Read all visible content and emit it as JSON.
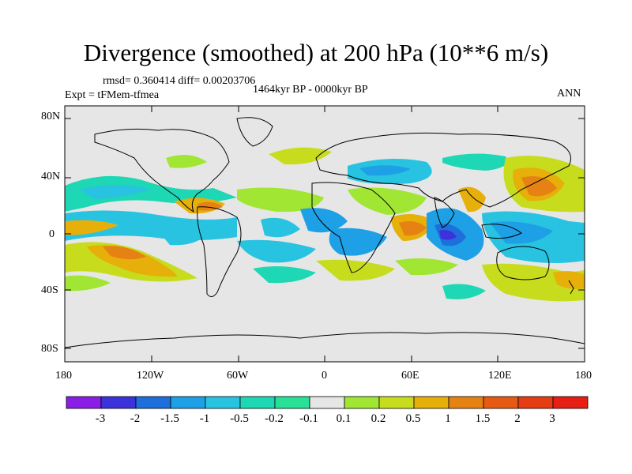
{
  "title": "Divergence (smoothed) at 200 hPa (10**6 m/s)",
  "stats": "rmsd= 0.360414 diff= 0.00203706",
  "period": "1464kyr BP - 0000kyr BP",
  "experiment": "Expt = tFMem-tfmea",
  "season": "ANN",
  "lat_ticks": [
    "80N",
    "40N",
    "0",
    "40S",
    "80S"
  ],
  "lon_ticks": [
    "180",
    "120W",
    "60W",
    "0",
    "60E",
    "120E",
    "180"
  ],
  "colorbar": {
    "labels": [
      "-3",
      "-2",
      "-1.5",
      "-1",
      "-0.5",
      "-0.2",
      "-0.1",
      "0.1",
      "0.2",
      "0.5",
      "1",
      "1.5",
      "2",
      "3"
    ],
    "colors": [
      "#8a1ee6",
      "#3c32dc",
      "#1e6edc",
      "#1ea0e6",
      "#28c3e1",
      "#1ed7b4",
      "#28e196",
      "#e6e6e6",
      "#a0e632",
      "#c8dc1e",
      "#e6af0a",
      "#e68214",
      "#e65a14",
      "#e63c14",
      "#e61e14"
    ]
  },
  "colors": {
    "land_neutral": "#e6e6e6",
    "coast": "#000000"
  }
}
